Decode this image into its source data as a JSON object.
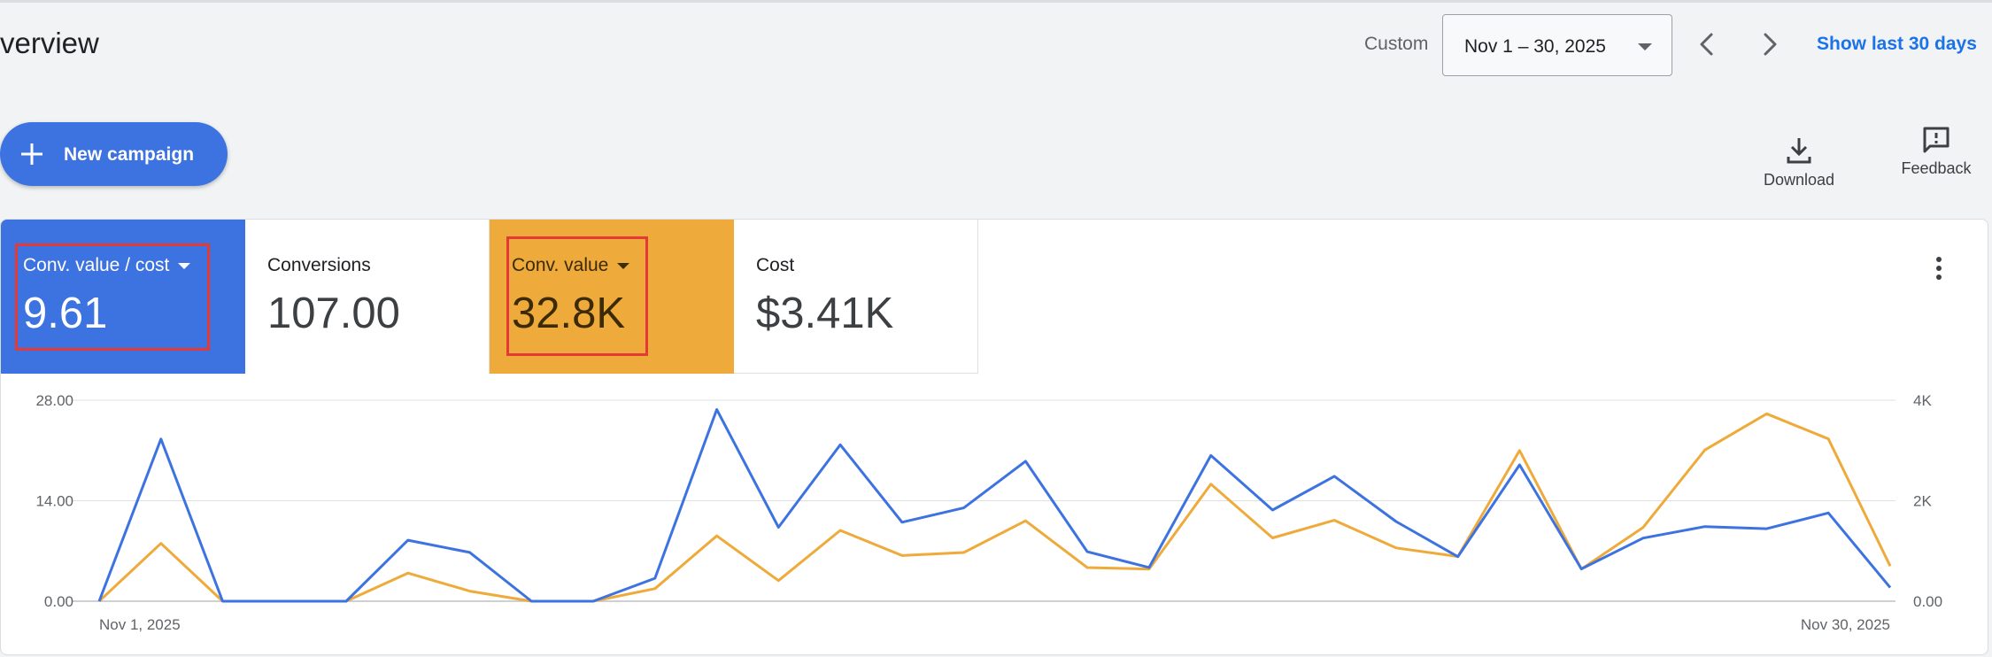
{
  "header": {
    "title": "verview",
    "range_label": "Custom",
    "date_range": "Nov 1 – 30, 2025",
    "show_last": "Show last 30 days"
  },
  "toolbar": {
    "new_campaign_label": "New campaign",
    "download_label": "Download",
    "feedback_label": "Feedback"
  },
  "colors": {
    "blue": "#3d73e0",
    "orange": "#eeaa3a",
    "highlight": "#e53935"
  },
  "metrics": [
    {
      "name": "Conv. value / cost",
      "value": "9.61",
      "dropdown": true,
      "highlighted": true
    },
    {
      "name": "Conversions",
      "value": "107.00",
      "dropdown": false,
      "highlighted": false
    },
    {
      "name": "Conv. value",
      "value": "32.8K",
      "dropdown": true,
      "highlighted": true
    },
    {
      "name": "Cost",
      "value": "$3.41K",
      "dropdown": false,
      "highlighted": false
    }
  ],
  "chart_data": {
    "type": "line",
    "x_start_label": "Nov 1, 2025",
    "x_end_label": "Nov 30, 2025",
    "left_axis": {
      "ticks": [
        "0.00",
        "14.00",
        "28.00"
      ],
      "range": [
        0,
        28
      ]
    },
    "right_axis": {
      "ticks": [
        "0.00",
        "2K",
        "4K"
      ],
      "range": [
        0,
        4000
      ]
    },
    "series": [
      {
        "axis": "left",
        "color": "#3d73e0",
        "values": [
          0,
          22.6,
          0,
          0,
          0,
          8.5,
          6.8,
          0,
          0,
          3.2,
          26.7,
          10.3,
          21.8,
          11,
          13,
          19.5,
          6.9,
          4.7,
          20.3,
          12.7,
          17.4,
          11.1,
          6.2,
          19,
          4.5,
          8.8,
          10.4,
          10.1,
          12.3,
          1.9
        ]
      },
      {
        "axis": "right",
        "color": "#eeaa3a",
        "values": [
          0,
          1150,
          0,
          0,
          0,
          560,
          200,
          0,
          0,
          250,
          1300,
          410,
          1410,
          910,
          970,
          1600,
          670,
          640,
          2330,
          1260,
          1610,
          1060,
          890,
          3000,
          640,
          1470,
          3010,
          3730,
          3230,
          700
        ]
      }
    ]
  }
}
